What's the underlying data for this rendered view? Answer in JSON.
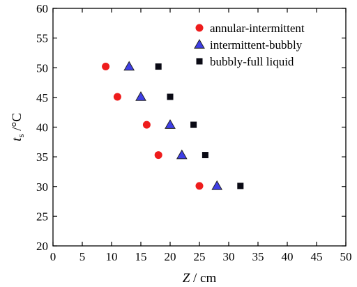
{
  "chart_data": {
    "type": "scatter",
    "xlabel_var": "Z",
    "xlabel_unit": " / cm",
    "ylabel_var": "t",
    "ylabel_sub": "s",
    "ylabel_unit": " /°C",
    "xlim": [
      0,
      50
    ],
    "ylim": [
      20,
      60
    ],
    "x_ticks": [
      0,
      5,
      10,
      15,
      20,
      25,
      30,
      35,
      40,
      45,
      50
    ],
    "y_ticks": [
      20,
      25,
      30,
      35,
      40,
      45,
      50,
      55,
      60
    ],
    "grid": false,
    "legend_position": "top-right",
    "series": [
      {
        "name": "annular-intermittent",
        "marker": "circle",
        "color": "#ee1c1c",
        "x": [
          9,
          11,
          16,
          18,
          25
        ],
        "y": [
          50.2,
          45.1,
          40.4,
          35.3,
          30.1
        ]
      },
      {
        "name": "intermittent-bubbly",
        "marker": "triangle",
        "color": "#3f3fe6",
        "x": [
          13,
          15,
          20,
          22,
          28
        ],
        "y": [
          50.2,
          45.1,
          40.4,
          35.3,
          30.1
        ]
      },
      {
        "name": "bubbly-full liquid",
        "marker": "square",
        "color": "#0a0a14",
        "x": [
          18,
          20,
          24,
          26,
          32
        ],
        "y": [
          50.2,
          45.1,
          40.4,
          35.3,
          30.1
        ]
      }
    ]
  }
}
